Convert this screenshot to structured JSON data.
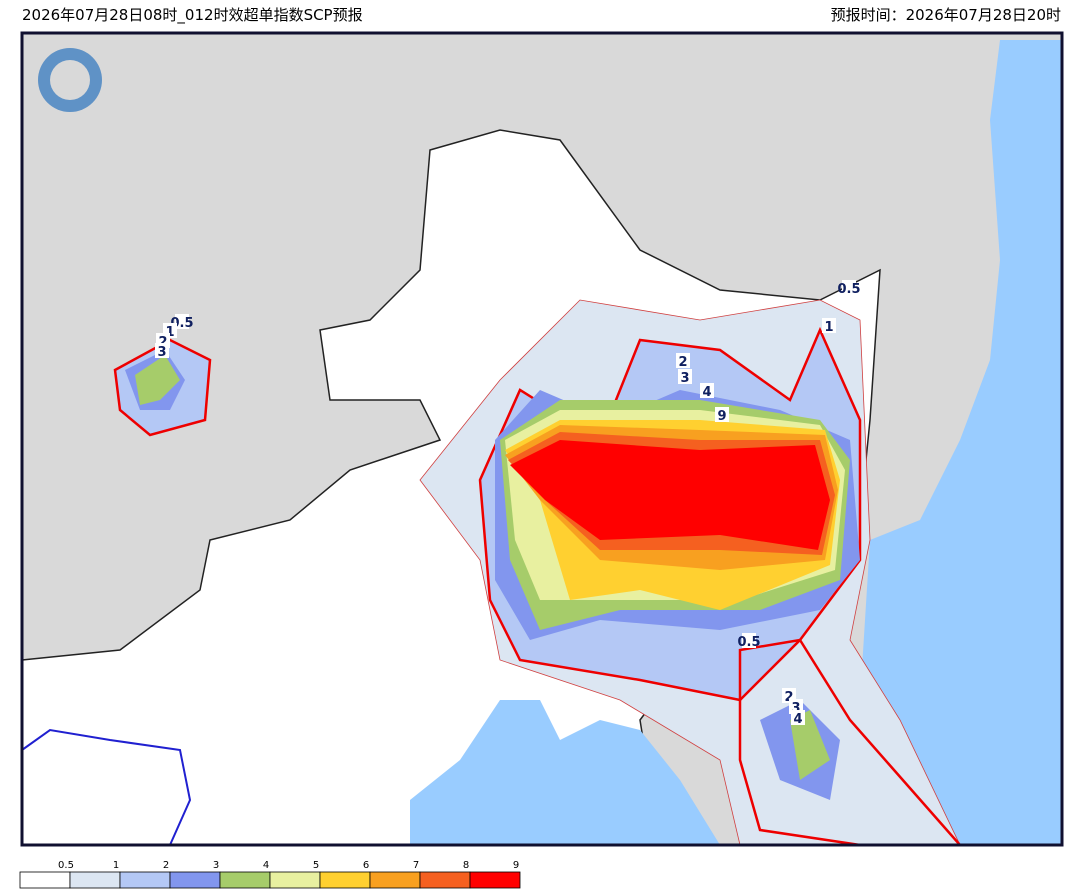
{
  "header": {
    "title": "2026年07月28日08时_012时效超单指数SCP预报",
    "forecast_time": "预报时间：2026年07月28日20时"
  },
  "map": {
    "contour_labels": [
      0.5,
      1,
      2,
      3,
      2,
      3,
      4,
      9,
      0.5,
      1,
      0.5,
      2,
      3,
      4
    ]
  },
  "legend": {
    "ticks": [
      0.5,
      1,
      2,
      3,
      4,
      5,
      6,
      7,
      8,
      9
    ],
    "colors": [
      "#ffffff",
      "#dce6f2",
      "#b4c8f5",
      "#8296ee",
      "#a6cc6a",
      "#e8f0a0",
      "#ffd030",
      "#f8a020",
      "#f56020",
      "#ff0000"
    ]
  }
}
